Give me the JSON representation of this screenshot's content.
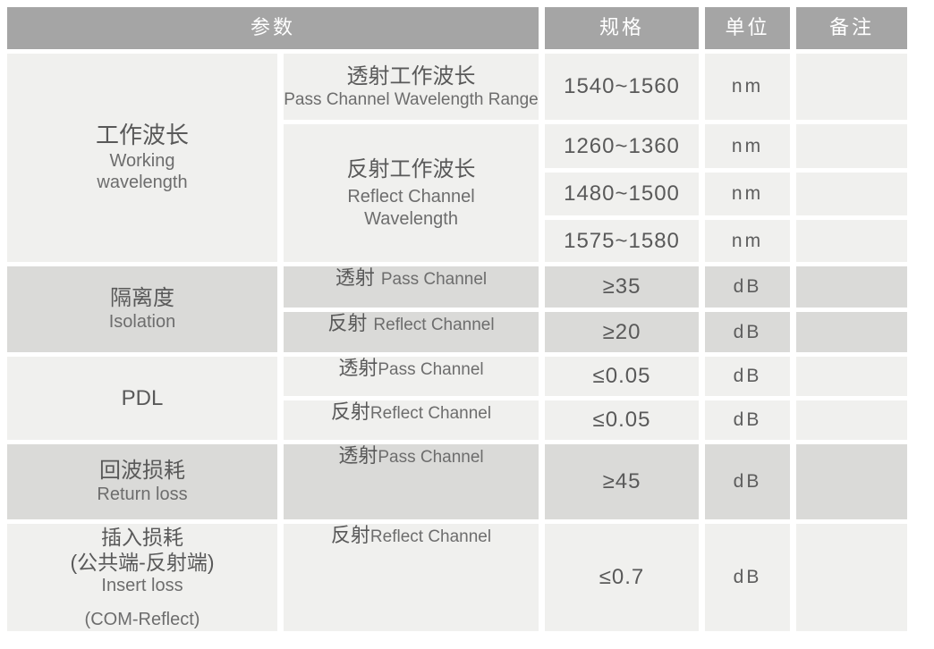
{
  "colors": {
    "header_bg": "#a5a5a5",
    "header_text": "#ffffff",
    "section_light": "#f0f0ee",
    "section_dark": "#dadad8",
    "text_primary": "#595959",
    "text_secondary": "#6d6d6d"
  },
  "table": {
    "header": {
      "param": "参数",
      "spec": "规格",
      "unit": "单位",
      "remark": "备注"
    },
    "wavelength": {
      "cn": "工作波长",
      "en1": "Working",
      "en2": "wavelength",
      "pass_cn": "透射工作波长",
      "pass_en": "Pass Channel Wavelength Range",
      "reflect_cn": "反射工作波长",
      "reflect_en1": "Reflect Channel",
      "reflect_en2": "Wavelength",
      "rows": [
        {
          "spec": "1540~1560",
          "unit": "nm",
          "remark": ""
        },
        {
          "spec": "1260~1360",
          "unit": "nm",
          "remark": ""
        },
        {
          "spec": "1480~1500",
          "unit": "nm",
          "remark": ""
        },
        {
          "spec": "1575~1580",
          "unit": "nm",
          "remark": ""
        }
      ]
    },
    "isolation": {
      "cn": "隔离度",
      "en": "Isolation",
      "rows": [
        {
          "cn": "透射",
          "en": "Pass Channel",
          "spec": "≥35",
          "unit": "dB",
          "remark": ""
        },
        {
          "cn": "反射",
          "en": "Reflect Channel",
          "spec": "≥20",
          "unit": "dB",
          "remark": ""
        }
      ]
    },
    "pdl": {
      "cn": "PDL",
      "rows": [
        {
          "cn": "透射",
          "en": "Pass Channel",
          "spec": "≤0.05",
          "unit": "dB",
          "remark": ""
        },
        {
          "cn": "反射",
          "en": "Reflect Channel",
          "spec": "≤0.05",
          "unit": "dB",
          "remark": ""
        }
      ]
    },
    "return_loss": {
      "cn": "回波损耗",
      "en": "Return loss",
      "rows": [
        {
          "cn": "透射",
          "en": "Pass Channel",
          "spec": "≥45",
          "unit": "dB",
          "remark": ""
        }
      ]
    },
    "insert_loss": {
      "cn": "插入损耗",
      "cn2": "(公共端-反射端)",
      "en": "Insert loss",
      "en2": "(COM-Reflect)",
      "rows": [
        {
          "cn": "反射",
          "en": "Reflect Channel",
          "spec": "≤0.7",
          "unit": "dB",
          "remark": ""
        }
      ]
    }
  }
}
